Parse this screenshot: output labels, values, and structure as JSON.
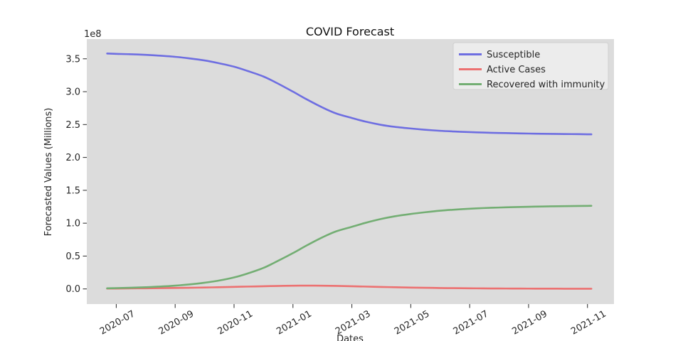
{
  "figure": {
    "title": "COVID Forecast",
    "xlabel": "Dates",
    "ylabel": "Forecasted Values (Millions)",
    "offset_text": "1e8",
    "background": "#ffffff",
    "plot_background": "#dcdcdc",
    "text_color": "#262626"
  },
  "legend": {
    "position": "upper-right",
    "background": "#ececec",
    "border": "#d0d0d0"
  },
  "chart_data": {
    "type": "line",
    "title": "COVID Forecast",
    "xlabel": "Dates",
    "ylabel": "Forecasted Values (Millions)",
    "y_unit_multiplier": "1e8",
    "grid": false,
    "legend_position": "upper right",
    "x_tick_labels": [
      "2020-07",
      "2020-09",
      "2020-11",
      "2021-01",
      "2021-03",
      "2021-05",
      "2021-07",
      "2021-09",
      "2021-11"
    ],
    "y_tick_values": [
      0.0,
      0.5,
      1.0,
      1.5,
      2.0,
      2.5,
      3.0,
      3.5
    ],
    "ylim": [
      -0.23,
      3.8
    ],
    "x": [
      "2020-06-22",
      "2020-07-01",
      "2020-07-15",
      "2020-08-01",
      "2020-08-15",
      "2020-09-01",
      "2020-09-15",
      "2020-10-01",
      "2020-10-15",
      "2020-11-01",
      "2020-11-15",
      "2020-12-01",
      "2020-12-15",
      "2021-01-01",
      "2021-01-15",
      "2021-02-01",
      "2021-02-15",
      "2021-03-01",
      "2021-03-15",
      "2021-04-01",
      "2021-04-15",
      "2021-05-01",
      "2021-05-15",
      "2021-06-01",
      "2021-06-15",
      "2021-07-01",
      "2021-07-15",
      "2021-08-01",
      "2021-08-15",
      "2021-09-01",
      "2021-09-15",
      "2021-10-01",
      "2021-10-15",
      "2021-11-01",
      "2021-11-05"
    ],
    "series": [
      {
        "name": "Susceptible",
        "color": "#6e6ee1",
        "values": [
          3.58,
          3.575,
          3.57,
          3.56,
          3.548,
          3.53,
          3.508,
          3.475,
          3.435,
          3.38,
          3.315,
          3.23,
          3.13,
          3.0,
          2.885,
          2.76,
          2.67,
          2.6,
          2.545,
          2.495,
          2.465,
          2.44,
          2.422,
          2.405,
          2.395,
          2.385,
          2.378,
          2.372,
          2.368,
          2.363,
          2.36,
          2.357,
          2.355,
          2.352,
          2.351
        ]
      },
      {
        "name": "Active Cases",
        "color": "#ec7171",
        "values": [
          0.005,
          0.006,
          0.008,
          0.01,
          0.012,
          0.015,
          0.018,
          0.022,
          0.026,
          0.031,
          0.036,
          0.041,
          0.045,
          0.049,
          0.05,
          0.049,
          0.046,
          0.041,
          0.036,
          0.03,
          0.026,
          0.021,
          0.018,
          0.014,
          0.012,
          0.01,
          0.008,
          0.007,
          0.006,
          0.005,
          0.004,
          0.004,
          0.003,
          0.003,
          0.003
        ]
      },
      {
        "name": "Recovered with immunity",
        "color": "#73ae73",
        "values": [
          0.01,
          0.013,
          0.018,
          0.026,
          0.035,
          0.05,
          0.068,
          0.095,
          0.125,
          0.175,
          0.235,
          0.32,
          0.42,
          0.545,
          0.66,
          0.785,
          0.875,
          0.945,
          1.005,
          1.065,
          1.105,
          1.14,
          1.165,
          1.19,
          1.205,
          1.22,
          1.23,
          1.238,
          1.244,
          1.25,
          1.254,
          1.258,
          1.26,
          1.263,
          1.264
        ]
      }
    ]
  }
}
